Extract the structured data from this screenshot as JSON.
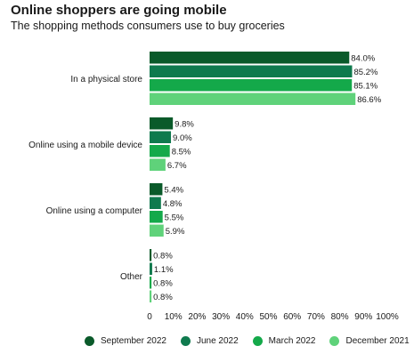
{
  "chart_data": {
    "type": "bar",
    "orientation": "horizontal",
    "title": "Online shoppers are going mobile",
    "subtitle": "The shopping methods consumers use to buy groceries",
    "categories": [
      "In a physical store",
      "Online using a mobile device",
      "Online using a computer",
      "Other"
    ],
    "series": [
      {
        "name": "September 2022",
        "color": "#0a5a2a",
        "values": [
          84.0,
          9.8,
          5.4,
          0.8
        ],
        "labels": [
          "84.0%",
          "9.8%",
          "5.4%",
          "0.8%"
        ]
      },
      {
        "name": "June 2022",
        "color": "#0f7a4e",
        "values": [
          85.2,
          9.0,
          4.8,
          1.1
        ],
        "labels": [
          "85.2%",
          "9.0%",
          "4.8%",
          "1.1%"
        ]
      },
      {
        "name": "March 2022",
        "color": "#14a94a",
        "values": [
          85.1,
          8.5,
          5.5,
          0.8
        ],
        "labels": [
          "85.1%",
          "8.5%",
          "5.5%",
          "0.8%"
        ]
      },
      {
        "name": "December 2021",
        "color": "#5fd27a",
        "values": [
          86.6,
          6.7,
          5.9,
          0.8
        ],
        "labels": [
          "86.6%",
          "6.7%",
          "5.9%",
          "0.8%"
        ]
      }
    ],
    "x_ticks": [
      "0",
      "10%",
      "20%",
      "30%",
      "40%",
      "50%",
      "60%",
      "70%",
      "80%",
      "90%",
      "100%"
    ],
    "xlim": [
      0,
      100
    ],
    "grid": false,
    "legend_position": "bottom"
  }
}
